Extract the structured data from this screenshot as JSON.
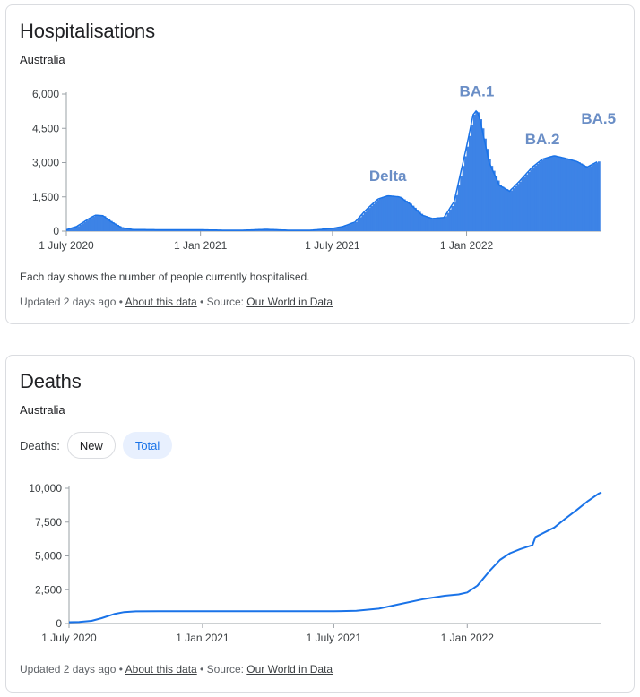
{
  "hospitalisations": {
    "title": "Hospitalisations",
    "region": "Australia",
    "note": "Each day shows the number of people currently hospitalised.",
    "footer": {
      "updated": "Updated 2 days ago",
      "about_link": "About this data",
      "source_prefix": "Source:",
      "source_link": "Our World in Data"
    }
  },
  "deaths": {
    "title": "Deaths",
    "region": "Australia",
    "toggle_label": "Deaths:",
    "toggle_options": [
      "New",
      "Total"
    ],
    "selected_option": "Total",
    "footer": {
      "updated": "Updated 2 days ago",
      "about_link": "About this data",
      "source_prefix": "Source:",
      "source_link": "Our World in Data"
    }
  },
  "colors": {
    "series": "#1a73e8",
    "bar_fill": "#3d83e6",
    "annotation": "#6a8ec6",
    "selected_chip_bg": "#e8f0fe"
  },
  "chart_data": [
    {
      "type": "bar",
      "x_tick_labels": [
        "1 July 2020",
        "1 Jan 2021",
        "1 July 2021",
        "1 Jan 2022"
      ],
      "y_tick_labels": [
        "0",
        "1,500",
        "3,000",
        "4,500",
        "6,000"
      ],
      "ylim": [
        0,
        6000
      ],
      "x": [
        "2020-07-01",
        "2020-07-15",
        "2020-08-01",
        "2020-08-10",
        "2020-08-20",
        "2020-09-01",
        "2020-09-15",
        "2020-10-01",
        "2020-11-01",
        "2020-12-01",
        "2021-01-01",
        "2021-02-01",
        "2021-03-01",
        "2021-04-01",
        "2021-05-01",
        "2021-06-01",
        "2021-07-01",
        "2021-07-15",
        "2021-08-01",
        "2021-08-15",
        "2021-09-01",
        "2021-09-15",
        "2021-10-01",
        "2021-10-15",
        "2021-11-01",
        "2021-11-15",
        "2021-12-01",
        "2021-12-15",
        "2022-01-01",
        "2022-01-10",
        "2022-01-15",
        "2022-01-20",
        "2022-02-01",
        "2022-02-15",
        "2022-03-01",
        "2022-03-15",
        "2022-04-01",
        "2022-04-15",
        "2022-05-01",
        "2022-05-15",
        "2022-06-01",
        "2022-06-15",
        "2022-06-30"
      ],
      "values": [
        60,
        200,
        550,
        700,
        680,
        400,
        150,
        70,
        60,
        60,
        60,
        40,
        40,
        80,
        40,
        40,
        120,
        200,
        400,
        900,
        1400,
        1550,
        1500,
        1200,
        700,
        550,
        600,
        1300,
        3700,
        5100,
        5300,
        4800,
        3000,
        2000,
        1750,
        2200,
        2800,
        3150,
        3300,
        3200,
        3050,
        2800,
        3050
      ],
      "annotations": [
        {
          "text": "Delta",
          "x": "2021-09-15",
          "y": 2200
        },
        {
          "text": "BA.1",
          "x": "2022-01-15",
          "y": 5900
        },
        {
          "text": "BA.2",
          "x": "2022-04-15",
          "y": 3800
        },
        {
          "text": "BA.5",
          "x": "2022-07-01",
          "y": 4700
        }
      ],
      "grid": false
    },
    {
      "type": "line",
      "x_tick_labels": [
        "1 July 2020",
        "1 Jan 2021",
        "1 July 2021",
        "1 Jan 2022"
      ],
      "y_tick_labels": [
        "0",
        "2,500",
        "5,000",
        "7,500",
        "10,000"
      ],
      "ylim": [
        0,
        10000
      ],
      "series": [
        {
          "x": [
            "2020-07-01",
            "2020-07-15",
            "2020-08-01",
            "2020-08-15",
            "2020-09-01",
            "2020-09-15",
            "2020-10-01",
            "2020-11-01",
            "2020-12-01",
            "2021-01-01",
            "2021-02-01",
            "2021-03-01",
            "2021-04-01",
            "2021-05-01",
            "2021-06-01",
            "2021-07-01",
            "2021-08-01",
            "2021-09-01",
            "2021-10-01",
            "2021-11-01",
            "2021-12-01",
            "2021-12-20",
            "2022-01-01",
            "2022-01-15",
            "2022-02-01",
            "2022-02-15",
            "2022-03-01",
            "2022-03-15",
            "2022-04-01",
            "2022-04-05",
            "2022-05-01",
            "2022-05-15",
            "2022-06-01",
            "2022-06-15",
            "2022-07-01",
            "2022-07-05"
          ],
          "values": [
            100,
            110,
            200,
            400,
            700,
            850,
            900,
            905,
            909,
            909,
            909,
            910,
            910,
            910,
            910,
            910,
            950,
            1100,
            1450,
            1800,
            2050,
            2150,
            2300,
            2800,
            3900,
            4700,
            5200,
            5500,
            5800,
            6400,
            7100,
            7700,
            8400,
            9000,
            9600,
            9700
          ]
        }
      ],
      "grid": false
    }
  ]
}
